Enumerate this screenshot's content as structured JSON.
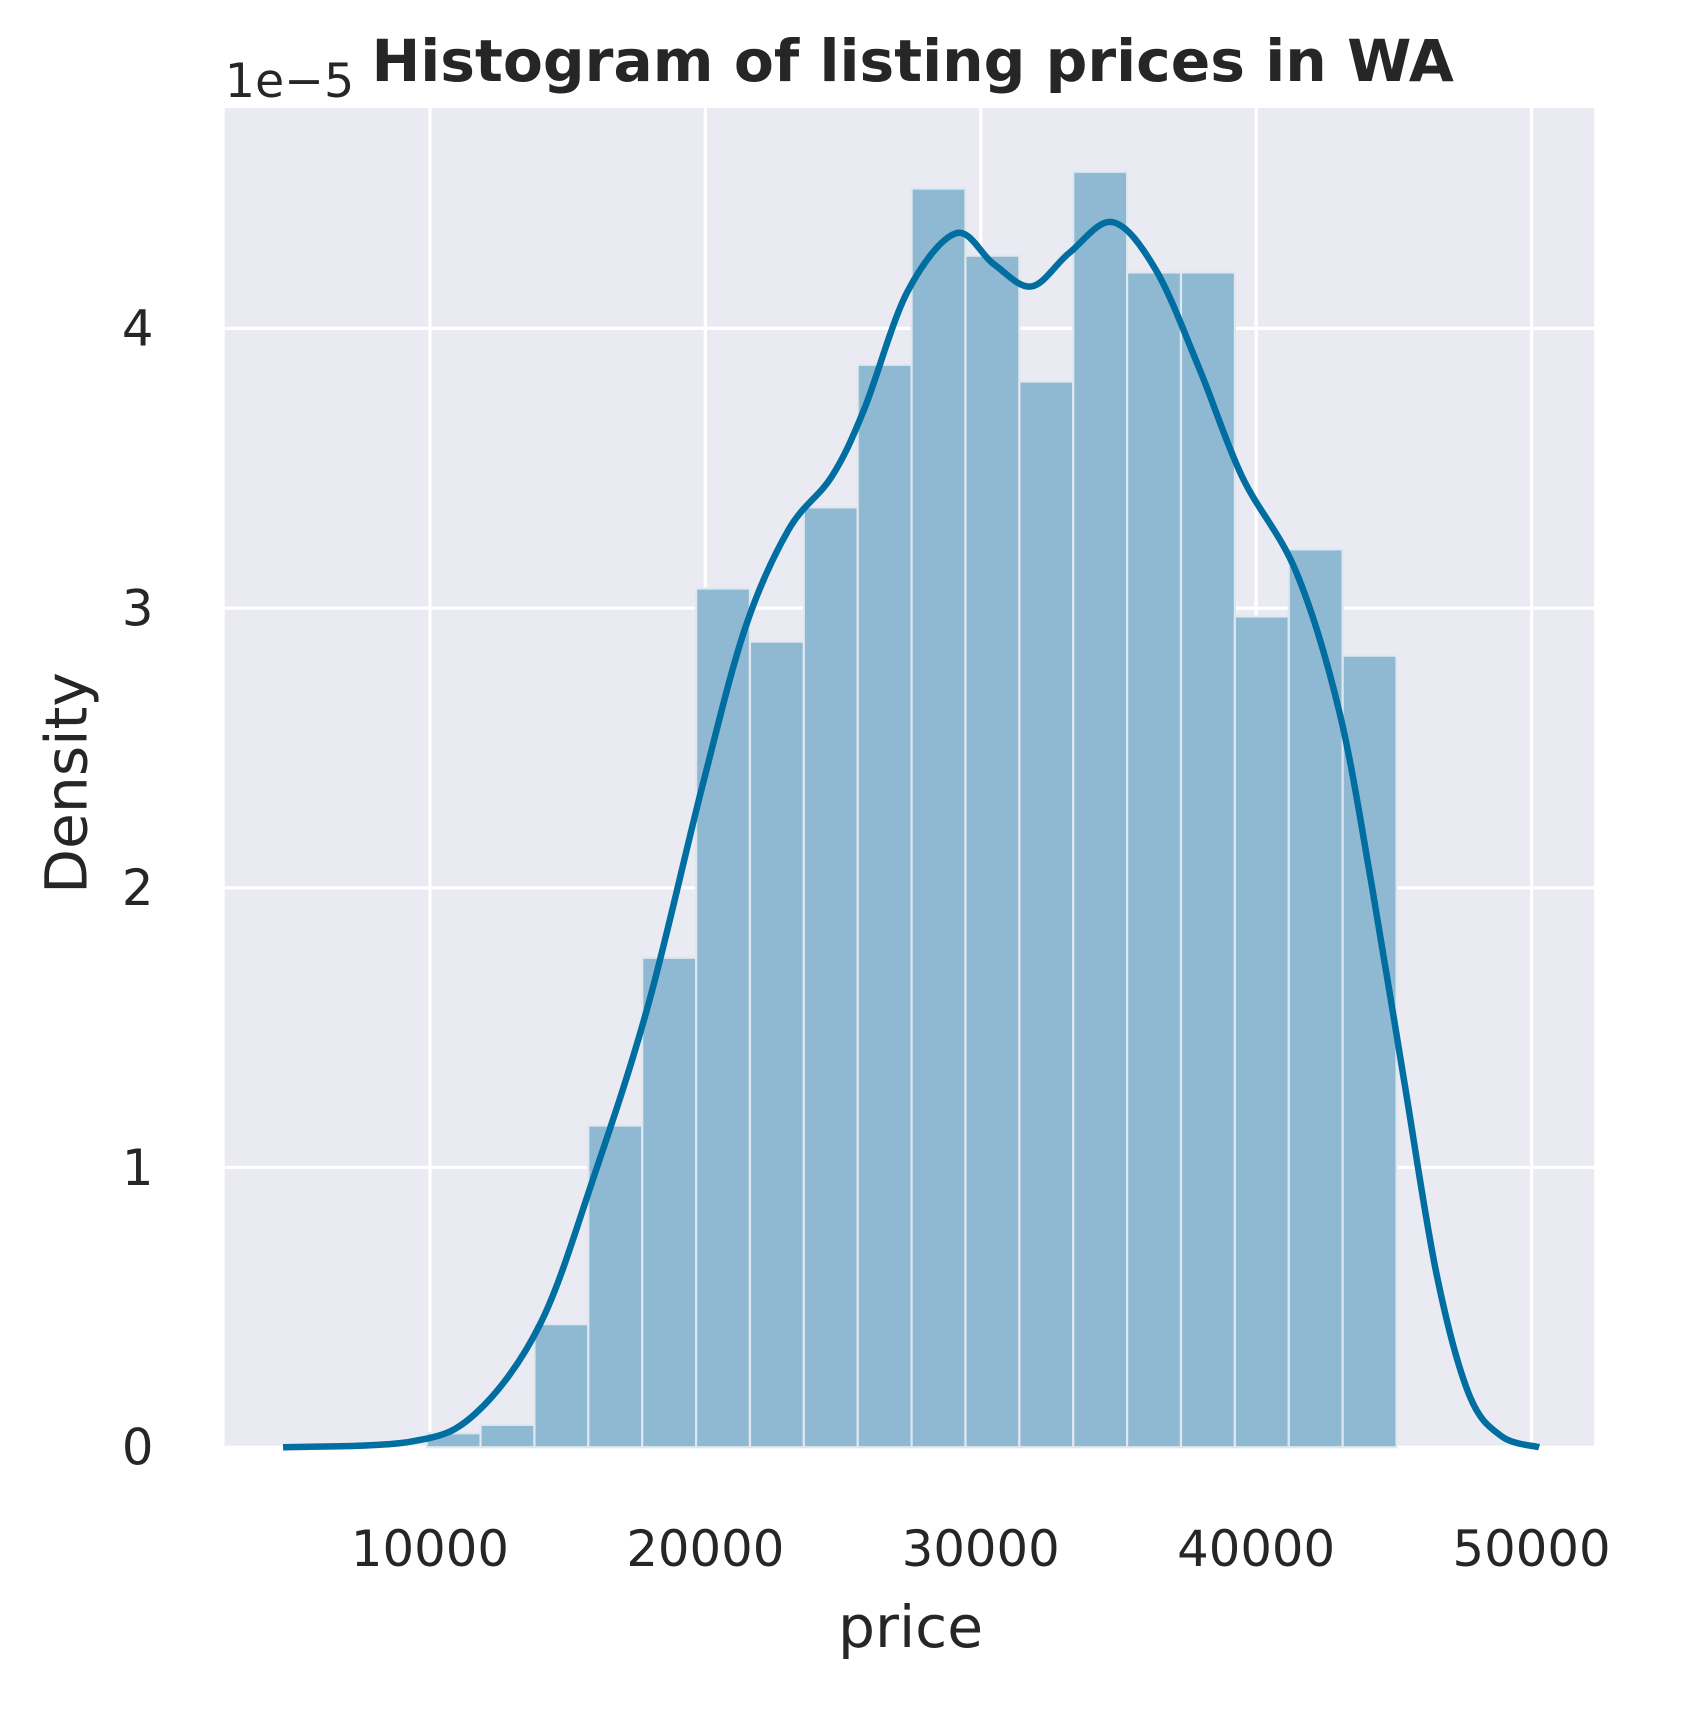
{
  "chart_data": {
    "type": "histogram",
    "title": "Histogram of listing prices in WA",
    "x_label": "price",
    "y_label": "Density",
    "y_offset_label": "1e−5",
    "bins": [
      9882,
      11838,
      13795,
      15751,
      17707,
      19664,
      21620,
      23577,
      25533,
      27489,
      29446,
      31402,
      33359,
      35315,
      37271,
      39228,
      41184,
      43141,
      45097
    ],
    "values": [
      0.05,
      0.08,
      0.44,
      1.15,
      1.75,
      3.07,
      2.88,
      3.36,
      3.87,
      4.5,
      4.26,
      3.81,
      4.56,
      4.2,
      4.2,
      2.97,
      3.21,
      2.83
    ],
    "color": "#8fb9d3",
    "line": {
      "color": "#006ea0",
      "x": [
        4667,
        9294,
        11647,
        14000,
        15961,
        17922,
        19882,
        21451,
        23020,
        24588,
        25765,
        27333,
        29098,
        30471,
        31843,
        33216,
        34784,
        36353,
        37922,
        39490,
        41451,
        43020,
        44196,
        45373,
        46549,
        47725,
        48902,
        50275
      ],
      "values": [
        0,
        0.02,
        0.12,
        0.44,
        0.97,
        1.58,
        2.36,
        2.93,
        3.28,
        3.47,
        3.71,
        4.13,
        4.34,
        4.23,
        4.15,
        4.27,
        4.38,
        4.21,
        3.86,
        3.47,
        3.13,
        2.63,
        2.01,
        1.31,
        0.62,
        0.19,
        0.04,
        0
      ]
    },
    "xlim": [
      2549,
      52275
    ],
    "xticks": [
      10000,
      20000,
      30000,
      40000,
      50000
    ],
    "ylim": [
      0,
      4.788
    ],
    "yticks": [
      0,
      1,
      2,
      3,
      4
    ],
    "grid": true
  }
}
